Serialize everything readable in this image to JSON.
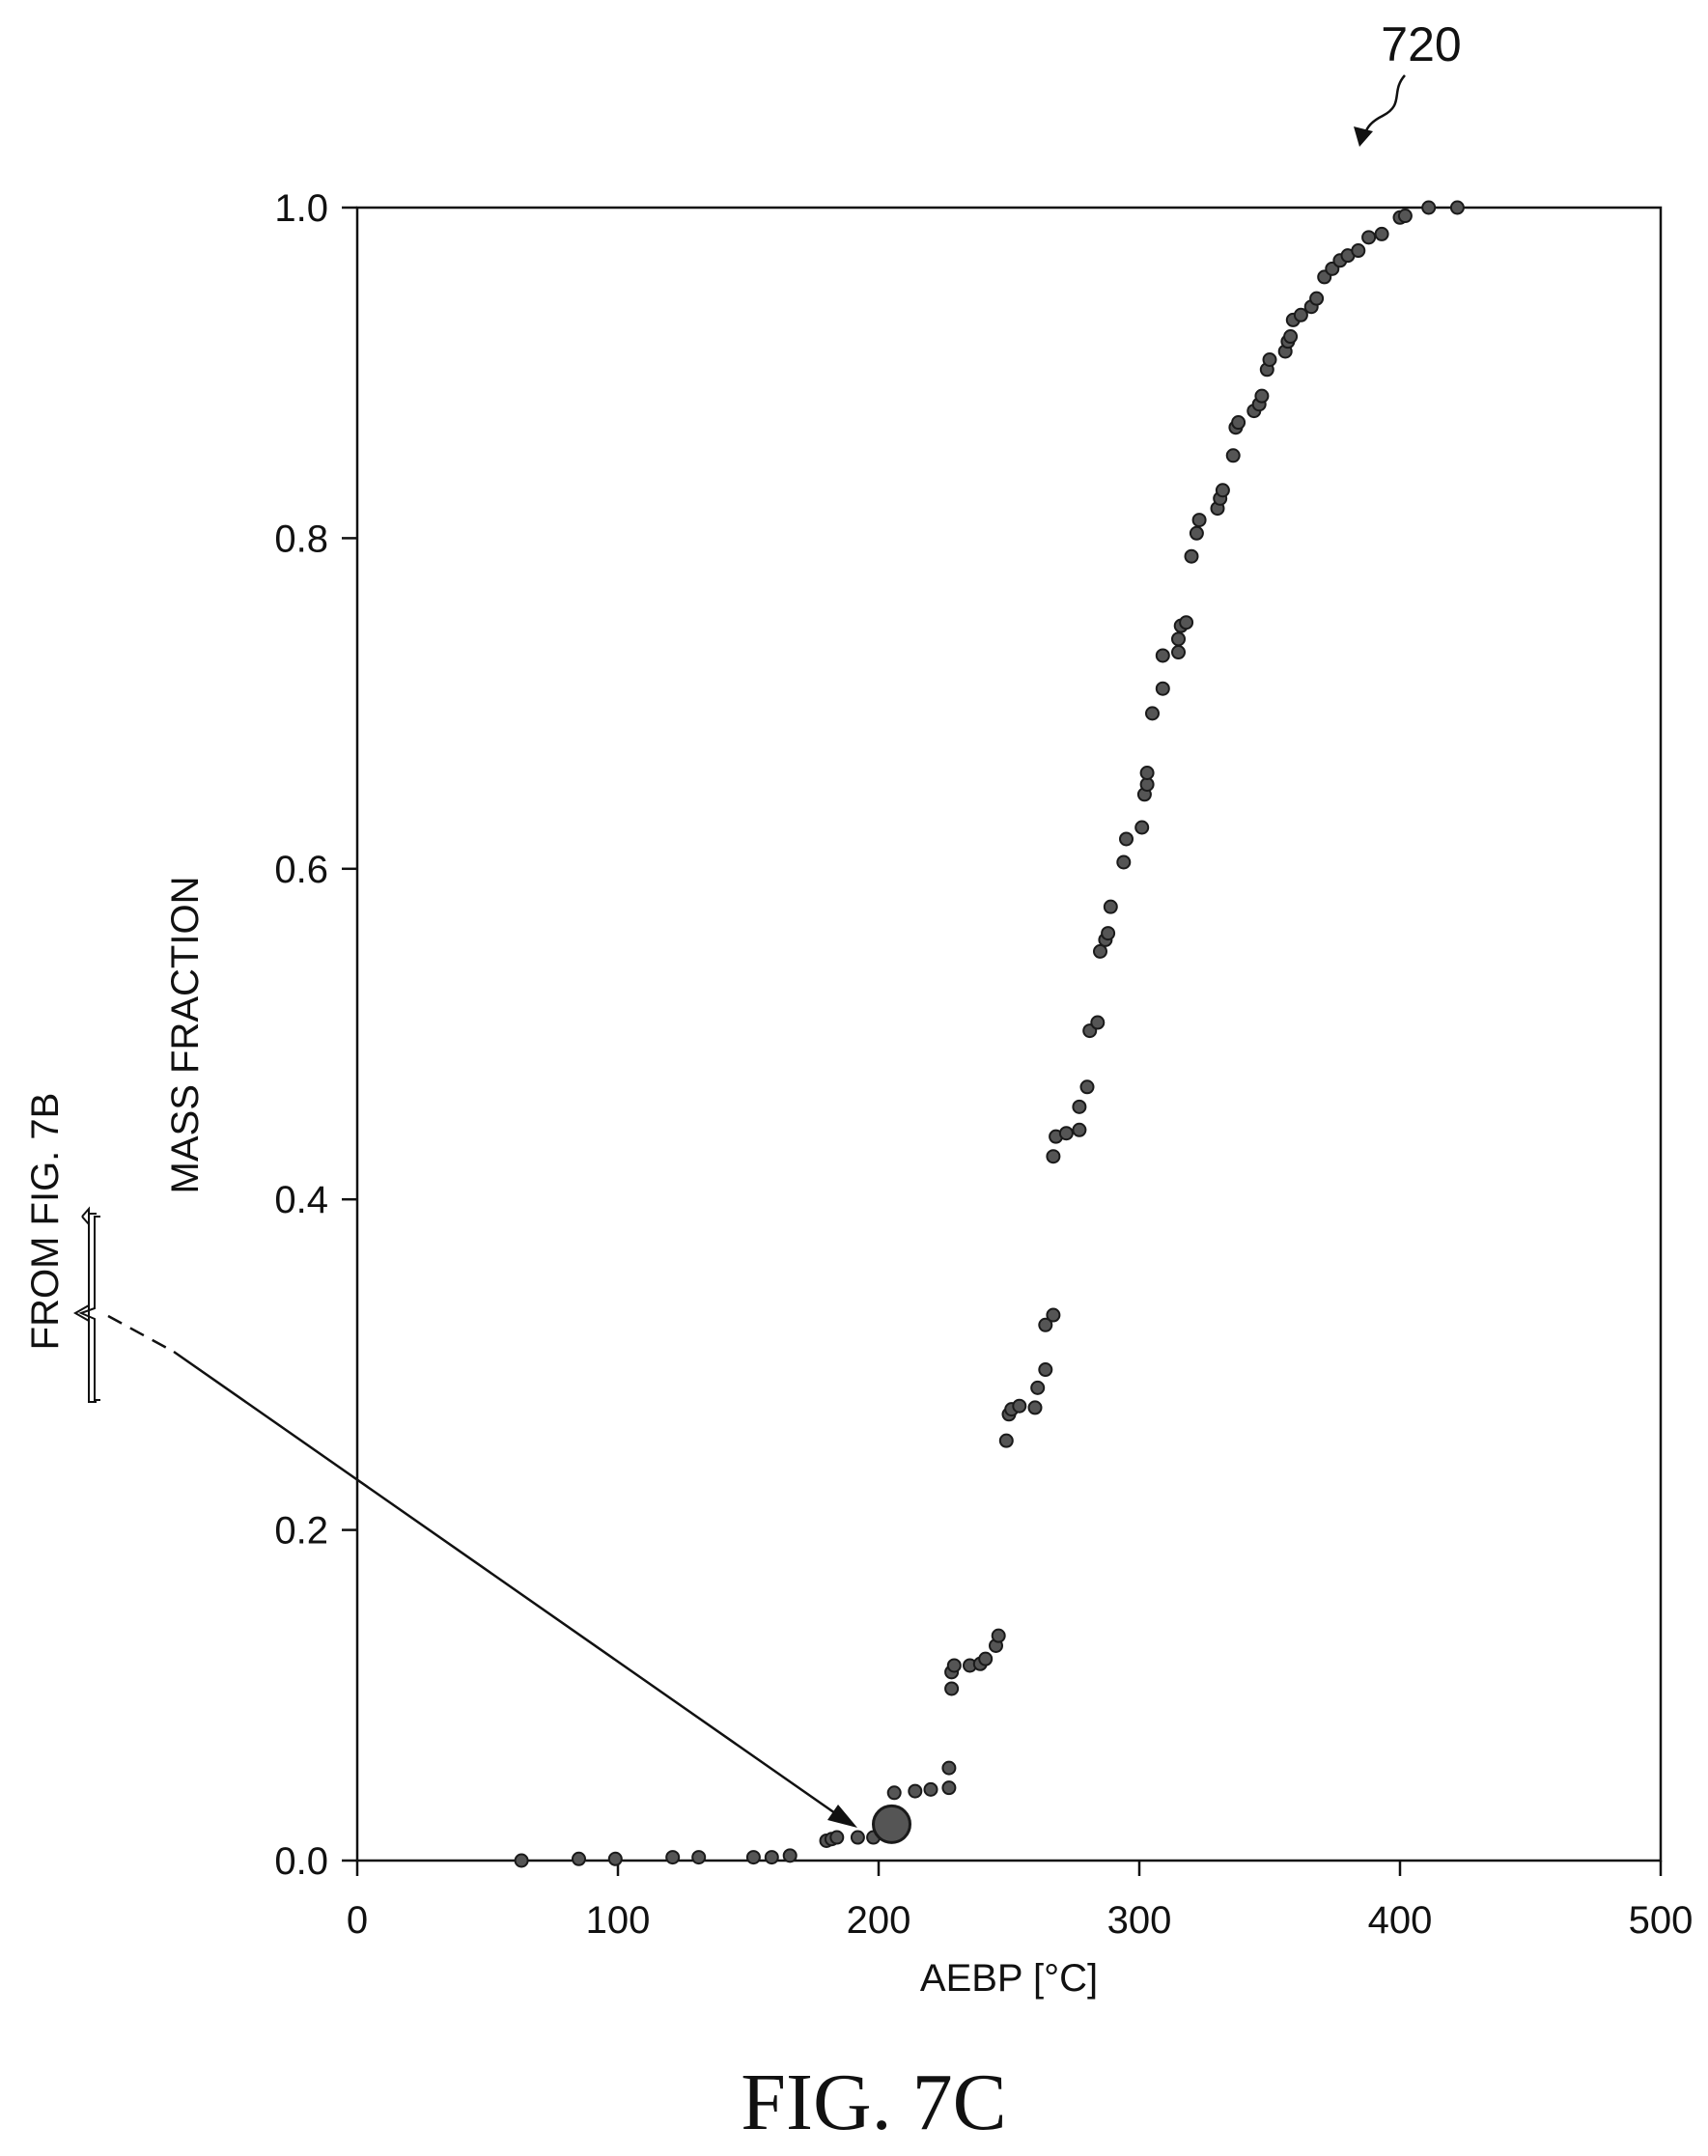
{
  "figure": {
    "label": "FIG. 7C",
    "reference_numeral": "720",
    "from_label": "FROM FIG. 7B"
  },
  "colors": {
    "ink": "#111111",
    "point_fill": "#555555",
    "point_stroke": "#1a1a1a"
  },
  "chart_data": {
    "type": "scatter",
    "title": "",
    "xlabel": "AEBP [°C]",
    "ylabel": "MASS FRACTION",
    "xlim": [
      0,
      500
    ],
    "ylim": [
      0.0,
      1.0
    ],
    "x_ticks": [
      0,
      100,
      200,
      300,
      400,
      500
    ],
    "x_tick_labels": [
      "0",
      "100",
      "200",
      "300",
      "400",
      "500"
    ],
    "y_ticks": [
      0.0,
      0.2,
      0.4,
      0.6,
      0.8,
      1.0
    ],
    "y_tick_labels": [
      "0.0",
      "0.2",
      "0.4",
      "0.6",
      "0.8",
      "1.0"
    ],
    "grid": false,
    "legend": "none",
    "series": [
      {
        "points": [
          [
            63,
            0.0
          ],
          [
            85,
            0.001
          ],
          [
            99,
            0.001
          ],
          [
            121,
            0.002
          ],
          [
            131,
            0.002
          ],
          [
            152,
            0.002
          ],
          [
            159,
            0.002
          ],
          [
            166,
            0.003
          ],
          [
            180,
            0.012
          ],
          [
            182,
            0.013
          ],
          [
            184,
            0.014
          ],
          [
            192,
            0.014
          ],
          [
            198,
            0.014
          ],
          [
            206,
            0.041
          ],
          [
            214,
            0.042
          ],
          [
            220,
            0.043
          ],
          [
            227,
            0.044
          ],
          [
            227,
            0.056
          ],
          [
            228,
            0.104
          ],
          [
            228,
            0.114
          ],
          [
            229,
            0.118
          ],
          [
            235,
            0.118
          ],
          [
            239,
            0.119
          ],
          [
            241,
            0.122
          ],
          [
            245,
            0.13
          ],
          [
            246,
            0.136
          ],
          [
            249,
            0.254
          ],
          [
            250,
            0.27
          ],
          [
            251,
            0.273
          ],
          [
            254,
            0.275
          ],
          [
            260,
            0.274
          ],
          [
            261,
            0.286
          ],
          [
            264,
            0.297
          ],
          [
            264,
            0.324
          ],
          [
            267,
            0.33
          ],
          [
            267,
            0.426
          ],
          [
            268,
            0.438
          ],
          [
            272,
            0.44
          ],
          [
            277,
            0.442
          ],
          [
            277,
            0.456
          ],
          [
            280,
            0.468
          ],
          [
            281,
            0.502
          ],
          [
            284,
            0.507
          ],
          [
            285,
            0.55
          ],
          [
            287,
            0.557
          ],
          [
            288,
            0.561
          ],
          [
            289,
            0.577
          ],
          [
            294,
            0.604
          ],
          [
            295,
            0.618
          ],
          [
            301,
            0.625
          ],
          [
            302,
            0.645
          ],
          [
            303,
            0.651
          ],
          [
            303,
            0.658
          ],
          [
            305,
            0.694
          ],
          [
            309,
            0.709
          ],
          [
            309,
            0.729
          ],
          [
            315,
            0.731
          ],
          [
            315,
            0.739
          ],
          [
            316,
            0.747
          ],
          [
            318,
            0.749
          ],
          [
            320,
            0.789
          ],
          [
            322,
            0.803
          ],
          [
            323,
            0.811
          ],
          [
            330,
            0.818
          ],
          [
            331,
            0.824
          ],
          [
            332,
            0.829
          ],
          [
            336,
            0.85
          ],
          [
            337,
            0.867
          ],
          [
            338,
            0.87
          ],
          [
            344,
            0.877
          ],
          [
            346,
            0.881
          ],
          [
            347,
            0.886
          ],
          [
            349,
            0.902
          ],
          [
            350,
            0.908
          ],
          [
            356,
            0.913
          ],
          [
            357,
            0.919
          ],
          [
            358,
            0.922
          ],
          [
            359,
            0.932
          ],
          [
            362,
            0.935
          ],
          [
            366,
            0.94
          ],
          [
            368,
            0.945
          ],
          [
            371,
            0.958
          ],
          [
            374,
            0.963
          ],
          [
            377,
            0.968
          ],
          [
            380,
            0.971
          ],
          [
            384,
            0.974
          ],
          [
            388,
            0.982
          ],
          [
            393,
            0.984
          ],
          [
            400,
            0.994
          ],
          [
            402,
            0.995
          ],
          [
            411,
            1.0
          ],
          [
            422,
            1.0
          ]
        ]
      }
    ],
    "highlight_point": [
      205,
      0.022
    ]
  }
}
